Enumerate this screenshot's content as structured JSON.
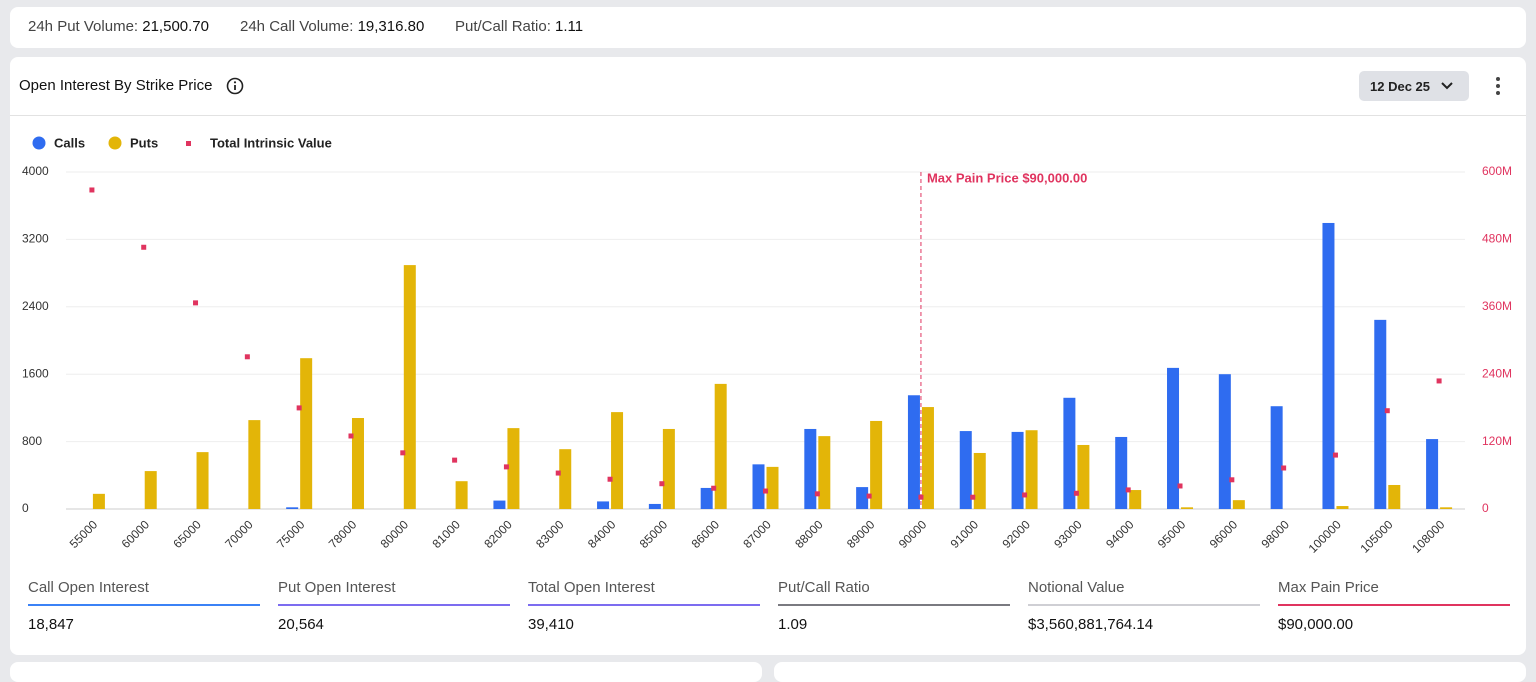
{
  "stats": [
    {
      "label": "24h Put Volume:",
      "value": "21,500.70"
    },
    {
      "label": "24h Call Volume:",
      "value": "19,316.80"
    },
    {
      "label": "Put/Call Ratio:",
      "value": "1.11"
    }
  ],
  "panel": {
    "title": "Open Interest By Strike Price",
    "date": "12 Dec 25"
  },
  "chart_data": {
    "type": "bar",
    "categories": [
      "55000",
      "60000",
      "65000",
      "70000",
      "75000",
      "78000",
      "80000",
      "81000",
      "82000",
      "83000",
      "84000",
      "85000",
      "86000",
      "87000",
      "88000",
      "89000",
      "90000",
      "91000",
      "92000",
      "93000",
      "94000",
      "95000",
      "96000",
      "98000",
      "100000",
      "105000",
      "108000"
    ],
    "series": [
      {
        "name": "Calls",
        "color": "#2f6cf0",
        "values": [
          0,
          0,
          0,
          0,
          20,
          0,
          0,
          0,
          100,
          0,
          90,
          60,
          250,
          530,
          950,
          260,
          1350,
          925,
          915,
          1320,
          855,
          1675,
          1600,
          1220,
          3395,
          2245,
          830
        ]
      },
      {
        "name": "Puts",
        "color": "#e3b508",
        "values": [
          180,
          450,
          675,
          1055,
          1790,
          1080,
          2895,
          330,
          960,
          710,
          1150,
          950,
          1485,
          500,
          865,
          1045,
          1210,
          665,
          935,
          760,
          225,
          20,
          105,
          0,
          35,
          285,
          20
        ]
      },
      {
        "name": "Total Intrinsic Value",
        "type": "scatter",
        "axis": "y2",
        "color": "#e0345f",
        "values": [
          568000000,
          466000000,
          367000000,
          271000000,
          180000000,
          130000000,
          100000000,
          87000000,
          75000000,
          64000000,
          53000000,
          45000000,
          37000000,
          32000000,
          27000000,
          23000000,
          21000000,
          21000000,
          25000000,
          28000000,
          34000000,
          41000000,
          52000000,
          73000000,
          96000000,
          175000000,
          228000000
        ]
      }
    ],
    "ylim": [
      0,
      4000
    ],
    "yticks": [
      0,
      800,
      1600,
      2400,
      3200,
      4000
    ],
    "y2lim": [
      0,
      600000000
    ],
    "y2ticks": [
      0,
      {
        "value": 120000000,
        "label": "120M"
      },
      {
        "value": 240000000,
        "label": "240M"
      },
      {
        "value": 360000000,
        "label": "360M"
      },
      {
        "value": 480000000,
        "label": "480M"
      },
      {
        "value": 600000000,
        "label": "600M"
      }
    ],
    "grid": true,
    "legend": "top-left",
    "annotation": {
      "text": "Max Pain Price $90,000.00",
      "x": "90000",
      "color": "#e0345f"
    }
  },
  "summary": [
    {
      "label": "Call Open Interest",
      "value": "18,847",
      "color": "#3b82f6"
    },
    {
      "label": "Put Open Interest",
      "value": "20,564",
      "color": "#7c6cf0"
    },
    {
      "label": "Total Open Interest",
      "value": "39,410",
      "color": "#7c6cf0"
    },
    {
      "label": "Put/Call Ratio",
      "value": "1.09",
      "color": "#7a7a80"
    },
    {
      "label": "Notional Value",
      "value": "$3,560,881,764.14",
      "color": "#cfcfd4"
    },
    {
      "label": "Max Pain Price",
      "value": "$90,000.00",
      "color": "#e0345f"
    }
  ]
}
